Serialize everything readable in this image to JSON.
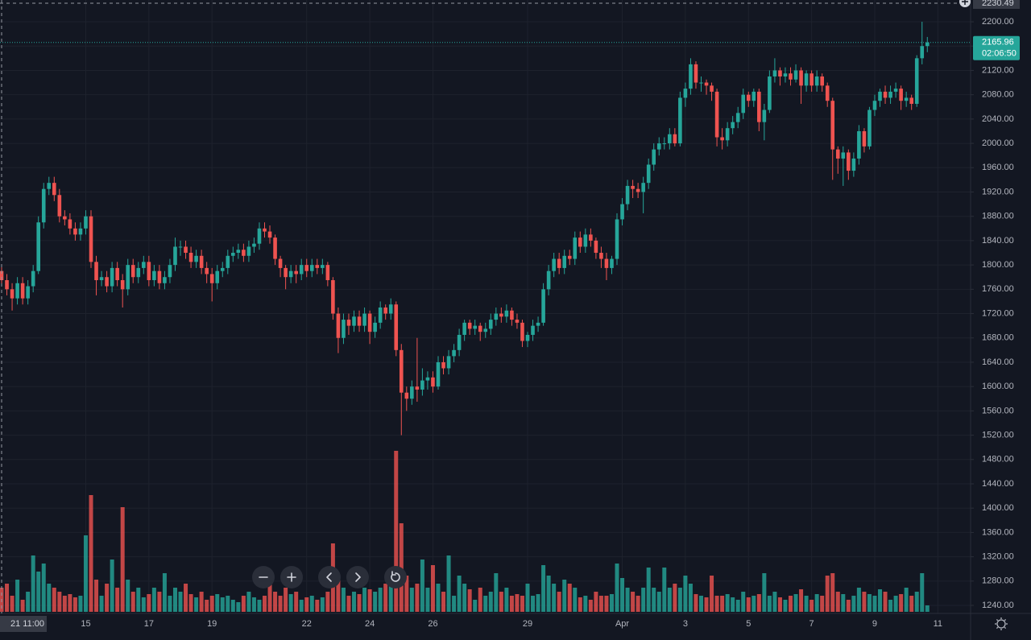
{
  "chart_data": {
    "type": "candlestick",
    "categories": [
      null,
      null,
      null,
      null,
      null,
      null,
      null,
      null,
      null,
      null,
      null,
      null,
      null,
      null,
      null,
      null,
      "15",
      null,
      null,
      null,
      null,
      null,
      null,
      null,
      null,
      null,
      null,
      null,
      "17",
      null,
      null,
      null,
      null,
      null,
      null,
      null,
      null,
      null,
      null,
      null,
      "19",
      null,
      null,
      null,
      null,
      null,
      null,
      null,
      null,
      null,
      null,
      null,
      null,
      null,
      null,
      null,
      null,
      null,
      "22",
      null,
      null,
      null,
      null,
      null,
      null,
      null,
      null,
      null,
      null,
      null,
      "24",
      null,
      null,
      null,
      null,
      null,
      null,
      null,
      null,
      null,
      null,
      null,
      "26",
      null,
      null,
      null,
      null,
      null,
      null,
      null,
      null,
      null,
      null,
      null,
      null,
      null,
      null,
      null,
      null,
      null,
      "29",
      null,
      null,
      null,
      null,
      null,
      null,
      null,
      null,
      null,
      null,
      null,
      null,
      null,
      null,
      null,
      null,
      null,
      "Apr",
      null,
      null,
      null,
      null,
      null,
      null,
      null,
      null,
      null,
      null,
      null,
      "3",
      null,
      null,
      null,
      null,
      null,
      null,
      null,
      null,
      null,
      null,
      null,
      "5",
      null,
      null,
      null,
      null,
      null,
      null,
      null,
      null,
      null,
      null,
      null,
      "7",
      null,
      null,
      null,
      null,
      null,
      null,
      null,
      null,
      null,
      null,
      null,
      "9",
      null,
      null,
      null,
      null,
      null,
      null,
      null,
      null,
      null,
      null,
      null,
      "11",
      null,
      null,
      null,
      null,
      null,
      null
    ],
    "open": [
      1790,
      1775,
      1760,
      1745,
      1770,
      1745,
      1765,
      1790,
      1870,
      1925,
      1935,
      1915,
      1880,
      1875,
      1860,
      1850,
      1860,
      1880,
      1805,
      1775,
      1780,
      1765,
      1795,
      1775,
      1760,
      1800,
      1780,
      1795,
      1805,
      1775,
      1790,
      1770,
      1780,
      1800,
      1830,
      1830,
      1820,
      1805,
      1815,
      1795,
      1785,
      1770,
      1790,
      1795,
      1815,
      1820,
      1825,
      1815,
      1830,
      1835,
      1860,
      1855,
      1845,
      1810,
      1795,
      1780,
      1790,
      1785,
      1800,
      1790,
      1800,
      1795,
      1800,
      1775,
      1720,
      1680,
      1710,
      1700,
      1715,
      1700,
      1720,
      1690,
      1705,
      1730,
      1720,
      1735,
      1660,
      1590,
      1580,
      1600,
      1595,
      1610,
      1615,
      1600,
      1640,
      1630,
      1650,
      1660,
      1685,
      1705,
      1695,
      1700,
      1690,
      1695,
      1710,
      1720,
      1715,
      1725,
      1710,
      1705,
      1675,
      1685,
      1700,
      1705,
      1760,
      1790,
      1810,
      1795,
      1815,
      1810,
      1845,
      1830,
      1850,
      1840,
      1820,
      1810,
      1795,
      1810,
      1875,
      1900,
      1930,
      1925,
      1920,
      1935,
      1965,
      1990,
      2000,
      2000,
      2015,
      2000,
      2075,
      2090,
      2130,
      2100,
      2100,
      2095,
      2085,
      2010,
      2005,
      2025,
      2035,
      2050,
      2080,
      2070,
      2085,
      2035,
      2055,
      2110,
      2120,
      2110,
      2115,
      2105,
      2120,
      2095,
      2115,
      2095,
      2110,
      2095,
      2070,
      1990,
      1975,
      1985,
      1955,
      1975,
      2020,
      1995,
      2055,
      2070,
      2085,
      2075,
      2085,
      2090,
      2070,
      2075,
      2065,
      2140,
      2160,
      null,
      null,
      null,
      null,
      null,
      null,
      null,
      null
    ],
    "high": [
      1800,
      1785,
      1770,
      1780,
      1780,
      1775,
      1800,
      1880,
      1935,
      1945,
      1945,
      1925,
      1890,
      1885,
      1870,
      1870,
      1890,
      1890,
      1815,
      1790,
      1790,
      1805,
      1805,
      1785,
      1810,
      1810,
      1805,
      1815,
      1815,
      1800,
      1800,
      1790,
      1810,
      1845,
      1840,
      1840,
      1830,
      1825,
      1825,
      1805,
      1795,
      1800,
      1805,
      1825,
      1830,
      1835,
      1835,
      1840,
      1845,
      1870,
      1870,
      1865,
      1850,
      1815,
      1800,
      1800,
      1800,
      1810,
      1810,
      1810,
      1810,
      1810,
      1805,
      1780,
      1730,
      1720,
      1720,
      1725,
      1725,
      1730,
      1725,
      1715,
      1740,
      1735,
      1745,
      1740,
      1670,
      1600,
      1610,
      1680,
      1630,
      1625,
      1625,
      1650,
      1650,
      1660,
      1670,
      1695,
      1710,
      1710,
      1710,
      1705,
      1705,
      1720,
      1730,
      1730,
      1735,
      1730,
      1720,
      1710,
      1690,
      1710,
      1715,
      1770,
      1800,
      1820,
      1820,
      1825,
      1825,
      1855,
      1855,
      1860,
      1860,
      1845,
      1830,
      1820,
      1815,
      1885,
      1910,
      1940,
      1940,
      1935,
      1945,
      1975,
      2000,
      2010,
      2010,
      2025,
      2025,
      2085,
      2100,
      2140,
      2135,
      2110,
      2105,
      2100,
      2090,
      2025,
      2035,
      2045,
      2060,
      2090,
      2085,
      2090,
      2090,
      2065,
      2120,
      2140,
      2125,
      2125,
      2125,
      2130,
      2125,
      2120,
      2120,
      2120,
      2115,
      2100,
      2075,
      1995,
      1995,
      1990,
      1985,
      2030,
      2025,
      2060,
      2080,
      2090,
      2095,
      2095,
      2100,
      2095,
      2085,
      2080,
      2145,
      2200,
      2175,
      null,
      null,
      null,
      null,
      null,
      null,
      null,
      null
    ],
    "low": [
      1765,
      1750,
      1725,
      1735,
      1735,
      1735,
      1755,
      1785,
      1860,
      1915,
      1905,
      1870,
      1865,
      1850,
      1840,
      1840,
      1850,
      1795,
      1750,
      1765,
      1755,
      1755,
      1765,
      1730,
      1750,
      1770,
      1770,
      1785,
      1765,
      1765,
      1760,
      1760,
      1770,
      1790,
      1815,
      1810,
      1795,
      1795,
      1785,
      1770,
      1740,
      1760,
      1780,
      1785,
      1805,
      1810,
      1805,
      1805,
      1820,
      1825,
      1845,
      1835,
      1800,
      1780,
      1760,
      1770,
      1770,
      1775,
      1780,
      1780,
      1785,
      1785,
      1765,
      1710,
      1655,
      1670,
      1685,
      1690,
      1690,
      1690,
      1670,
      1680,
      1695,
      1710,
      1710,
      1650,
      1520,
      1560,
      1570,
      1575,
      1585,
      1595,
      1590,
      1595,
      1620,
      1620,
      1640,
      1650,
      1675,
      1685,
      1685,
      1675,
      1680,
      1685,
      1700,
      1705,
      1705,
      1700,
      1695,
      1665,
      1665,
      1675,
      1690,
      1700,
      1750,
      1780,
      1785,
      1785,
      1800,
      1800,
      1820,
      1820,
      1830,
      1810,
      1795,
      1775,
      1785,
      1800,
      1865,
      1890,
      1910,
      1910,
      1885,
      1925,
      1955,
      1980,
      1990,
      1990,
      1995,
      1995,
      2060,
      2080,
      2090,
      2085,
      2080,
      2070,
      1995,
      1990,
      1995,
      2015,
      2025,
      2040,
      2060,
      2060,
      2020,
      2005,
      2050,
      2100,
      2095,
      2100,
      2095,
      2100,
      2065,
      2085,
      2085,
      2085,
      2085,
      2060,
      1940,
      1950,
      1930,
      1940,
      1945,
      1965,
      1985,
      1990,
      2045,
      2060,
      2065,
      2065,
      2075,
      2055,
      2060,
      2055,
      2060,
      2130,
      2150,
      null,
      null,
      null,
      null,
      null,
      null,
      null,
      null
    ],
    "close": [
      1775,
      1760,
      1745,
      1770,
      1745,
      1765,
      1790,
      1870,
      1925,
      1935,
      1915,
      1880,
      1875,
      1860,
      1850,
      1860,
      1880,
      1805,
      1775,
      1780,
      1765,
      1795,
      1775,
      1760,
      1800,
      1780,
      1795,
      1805,
      1775,
      1790,
      1770,
      1780,
      1800,
      1830,
      1830,
      1820,
      1805,
      1815,
      1795,
      1785,
      1770,
      1790,
      1795,
      1815,
      1820,
      1825,
      1815,
      1830,
      1835,
      1860,
      1855,
      1845,
      1810,
      1795,
      1780,
      1790,
      1785,
      1800,
      1790,
      1800,
      1795,
      1800,
      1775,
      1720,
      1680,
      1710,
      1700,
      1715,
      1700,
      1720,
      1690,
      1705,
      1730,
      1720,
      1735,
      1660,
      1590,
      1580,
      1600,
      1595,
      1610,
      1615,
      1600,
      1640,
      1630,
      1650,
      1660,
      1685,
      1705,
      1695,
      1700,
      1690,
      1695,
      1710,
      1720,
      1715,
      1725,
      1710,
      1705,
      1675,
      1685,
      1700,
      1705,
      1760,
      1790,
      1810,
      1795,
      1815,
      1810,
      1845,
      1830,
      1850,
      1840,
      1820,
      1810,
      1795,
      1810,
      1875,
      1900,
      1930,
      1925,
      1920,
      1935,
      1965,
      1990,
      2000,
      2000,
      2015,
      2000,
      2075,
      2090,
      2130,
      2100,
      2100,
      2095,
      2085,
      2010,
      2005,
      2025,
      2035,
      2050,
      2080,
      2070,
      2085,
      2035,
      2055,
      2110,
      2120,
      2110,
      2115,
      2105,
      2120,
      2095,
      2115,
      2095,
      2110,
      2095,
      2070,
      1990,
      1975,
      1985,
      1955,
      1975,
      2020,
      1995,
      2055,
      2070,
      2085,
      2075,
      2085,
      2090,
      2070,
      2075,
      2065,
      2140,
      2160,
      2165.96,
      null,
      null,
      null,
      null,
      null,
      null,
      null,
      null
    ],
    "volume": [
      30,
      35,
      20,
      40,
      15,
      25,
      70,
      50,
      60,
      35,
      30,
      25,
      20,
      22,
      18,
      20,
      95,
      145,
      40,
      20,
      35,
      65,
      30,
      130,
      40,
      25,
      30,
      18,
      22,
      30,
      25,
      48,
      20,
      30,
      25,
      35,
      22,
      18,
      25,
      15,
      20,
      22,
      18,
      20,
      15,
      12,
      20,
      25,
      18,
      15,
      20,
      38,
      25,
      20,
      30,
      22,
      25,
      15,
      18,
      20,
      15,
      18,
      25,
      85,
      40,
      30,
      20,
      25,
      22,
      30,
      28,
      25,
      30,
      35,
      35,
      200,
      110,
      45,
      30,
      35,
      65,
      30,
      58,
      35,
      25,
      70,
      20,
      45,
      35,
      28,
      15,
      30,
      20,
      25,
      48,
      25,
      30,
      20,
      22,
      20,
      35,
      20,
      22,
      58,
      45,
      35,
      25,
      40,
      35,
      30,
      18,
      20,
      15,
      25,
      20,
      20,
      22,
      60,
      42,
      30,
      25,
      20,
      30,
      55,
      30,
      25,
      55,
      30,
      35,
      30,
      45,
      35,
      22,
      20,
      18,
      45,
      20,
      20,
      22,
      18,
      15,
      25,
      18,
      20,
      22,
      48,
      20,
      25,
      18,
      15,
      20,
      22,
      28,
      20,
      15,
      22,
      20,
      45,
      48,
      25,
      22,
      15,
      20,
      30,
      25,
      22,
      20,
      28,
      25,
      15,
      20,
      22,
      30,
      20,
      25,
      48,
      8,
      null,
      null,
      null,
      null,
      null,
      null,
      null,
      null
    ],
    "up_color": "#26a69a",
    "down_color": "#ef5350",
    "ylim": [
      1226.8,
      2235.8
    ],
    "yticks": [
      {
        "value": 1240,
        "label": "1240.00"
      },
      {
        "value": 1280,
        "label": "1280.00"
      },
      {
        "value": 1320,
        "label": "1320.00"
      },
      {
        "value": 1360,
        "label": "1360.00"
      },
      {
        "value": 1400,
        "label": "1400.00"
      },
      {
        "value": 1440,
        "label": "1440.00"
      },
      {
        "value": 1480,
        "label": "1480.00"
      },
      {
        "value": 1520,
        "label": "1520.00"
      },
      {
        "value": 1560,
        "label": "1560.00"
      },
      {
        "value": 1600,
        "label": "1600.00"
      },
      {
        "value": 1640,
        "label": "1640.00"
      },
      {
        "value": 1680,
        "label": "1680.00"
      },
      {
        "value": 1720,
        "label": "1720.00"
      },
      {
        "value": 1760,
        "label": "1760.00"
      },
      {
        "value": 1800,
        "label": "1800.00"
      },
      {
        "value": 1840,
        "label": "1840.00"
      },
      {
        "value": 1880,
        "label": "1880.00"
      },
      {
        "value": 1920,
        "label": "1920.00"
      },
      {
        "value": 1960,
        "label": "1960.00"
      },
      {
        "value": 2000,
        "label": "2000.00"
      },
      {
        "value": 2040,
        "label": "2040.00"
      },
      {
        "value": 2080,
        "label": "2080.00"
      },
      {
        "value": 2120,
        "label": "2120.00"
      },
      {
        "value": 2160,
        "label": "2160.00"
      },
      {
        "value": 2200,
        "label": "2200.00"
      }
    ],
    "grid": true,
    "crosshair_price": 2230.49,
    "crosshair_time": "21 11:00",
    "countdown": "02:06:50"
  }
}
